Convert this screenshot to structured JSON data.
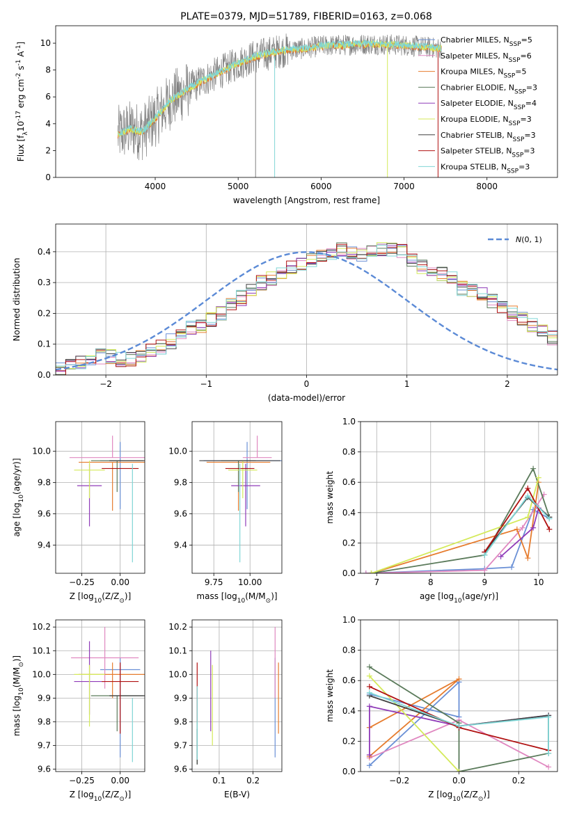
{
  "figure": {
    "title": "PLATE=0379, MJD=51789, FIBERID=0163, z=0.068"
  },
  "colors": {
    "gray": "#808080",
    "cyan": "#80d6d6",
    "orange": "#e67c2e",
    "yellow_green": "#d4ea5a",
    "purple": "#8f3ab8",
    "dark_green": "#5a7a5a",
    "red": "#b01010",
    "blue": "#6a90d6",
    "pink": "#e088c0",
    "dark_gray": "#404040"
  },
  "chart_data": [
    {
      "id": "spectrum",
      "type": "line",
      "title": "PLATE=0379, MJD=51789, FIBERID=0163, z=0.068",
      "xlabel": "wavelength [Angstrom, rest frame]",
      "ylabel": "Flux [f$_\\lambda$10$^{-17}$ erg cm$^{-2}$ s$^{-1}$ A$^{-1}$]",
      "xlim": [
        2800,
        8850
      ],
      "ylim": [
        0,
        11.3
      ],
      "xticks": [
        "4000",
        "5000",
        "6000",
        "7000",
        "8000"
      ],
      "yticks": [
        "0",
        "2",
        "4",
        "6",
        "8",
        "10"
      ],
      "data_range": [
        3550,
        7450
      ],
      "model_trend": {
        "x": [
          3550,
          3700,
          3850,
          4000,
          4200,
          4400,
          4600,
          4800,
          5000,
          5200,
          5400,
          5600,
          5800,
          6000,
          6200,
          6400,
          6600,
          6800,
          7000,
          7200,
          7450
        ],
        "y": [
          3.2,
          3.6,
          3.4,
          4.4,
          5.8,
          6.6,
          7.3,
          7.9,
          8.5,
          9.0,
          9.3,
          9.5,
          9.6,
          9.8,
          9.85,
          9.9,
          9.95,
          9.9,
          9.85,
          9.75,
          9.6
        ]
      },
      "legend": [
        {
          "label": "Chabrier MILES, N$_{SSP}$=5",
          "color": "#6a90d6"
        },
        {
          "label": "Salpeter MILES, N$_{SSP}$=6",
          "color": "#e088c0"
        },
        {
          "label": "Kroupa MILES, N$_{SSP}$=5",
          "color": "#e67c2e"
        },
        {
          "label": "Chabrier ELODIE, N$_{SSP}$=3",
          "color": "#5a7a5a"
        },
        {
          "label": "Salpeter ELODIE, N$_{SSP}$=4",
          "color": "#8f3ab8"
        },
        {
          "label": "Kroupa ELODIE, N$_{SSP}$=3",
          "color": "#d4ea5a"
        },
        {
          "label": "Chabrier STELIB, N$_{SSP}$=3",
          "color": "#404040"
        },
        {
          "label": "Salpeter STELIB, N$_{SSP}$=3",
          "color": "#b01010"
        },
        {
          "label": "Kroupa STELIB, N$_{SSP}$=3",
          "color": "#80d6d6"
        }
      ]
    },
    {
      "id": "residuals",
      "type": "line",
      "xlabel": "(data-model)/error",
      "ylabel": "Normed distribution",
      "xlim": [
        -2.5,
        2.5
      ],
      "ylim": [
        0,
        0.49
      ],
      "xticks": [
        "−2",
        "−1",
        "0",
        "1",
        "2"
      ],
      "yticks": [
        "0.0",
        "0.1",
        "0.2",
        "0.3",
        "0.4"
      ],
      "legend": [
        {
          "label": "$\\mathcal{N}(0, 1)$",
          "color": "#5b8ad6"
        }
      ],
      "bin_width": 0.1,
      "hist_mean": [
        0.02,
        0.03,
        0.04,
        0.05,
        0.06,
        0.06,
        0.05,
        0.05,
        0.06,
        0.08,
        0.09,
        0.11,
        0.13,
        0.15,
        0.16,
        0.18,
        0.2,
        0.23,
        0.25,
        0.28,
        0.3,
        0.31,
        0.33,
        0.35,
        0.36,
        0.37,
        0.38,
        0.4,
        0.41,
        0.4,
        0.39,
        0.4,
        0.41,
        0.41,
        0.4,
        0.37,
        0.35,
        0.34,
        0.33,
        0.31,
        0.28,
        0.27,
        0.26,
        0.24,
        0.22,
        0.2,
        0.18,
        0.16,
        0.14,
        0.12,
        0.12,
        0.1,
        0.09,
        0.07,
        0.06,
        0.05,
        0.04,
        0.04,
        0.03,
        0.03
      ]
    },
    {
      "id": "age-vs-Z",
      "type": "scatter",
      "xlabel": "Z [log$_{10}$(Z/Z$_\\odot$)]",
      "ylabel": "age  [log$_{10}$(age/yr)]",
      "xlim": [
        -0.42,
        0.16
      ],
      "ylim": [
        9.22,
        10.19
      ],
      "xticks": [
        "−0.25",
        "0.00"
      ],
      "yticks": [
        "9.4",
        "9.6",
        "9.8",
        "10.0"
      ],
      "points": [
        {
          "x": 0.0,
          "y": 9.94,
          "xerr": 0.13,
          "yerr": [
            0.31,
            0.12
          ],
          "color": "#6a90d6"
        },
        {
          "x": -0.05,
          "y": 9.96,
          "xerr": 0.28,
          "yerr": [
            0.0,
            0.14
          ],
          "color": "#e088c0"
        },
        {
          "x": -0.05,
          "y": 9.93,
          "xerr": 0.22,
          "yerr": [
            0.31,
            0.0
          ],
          "color": "#e67c2e"
        },
        {
          "x": -0.02,
          "y": 9.94,
          "xerr": 0.17,
          "yerr": [
            0.2,
            0.0
          ],
          "color": "#5a7a5a"
        },
        {
          "x": -0.2,
          "y": 9.78,
          "xerr": 0.08,
          "yerr": [
            0.26,
            0.14
          ],
          "color": "#8f3ab8"
        },
        {
          "x": -0.2,
          "y": 9.88,
          "xerr": 0.1,
          "yerr": [
            0.18,
            0.06
          ],
          "color": "#d4ea5a"
        },
        {
          "x": 0.05,
          "y": 9.94,
          "xerr": 0.12,
          "yerr": [
            0.0,
            0.0
          ],
          "color": "#404040"
        },
        {
          "x": 0.0,
          "y": 9.89,
          "xerr": 0.12,
          "yerr": [
            0.0,
            0.0
          ],
          "color": "#b01010"
        },
        {
          "x": 0.08,
          "y": 9.92,
          "xerr": 0.0,
          "yerr": [
            0.63,
            0.0
          ],
          "color": "#80d6d6"
        }
      ]
    },
    {
      "id": "age-vs-mass",
      "type": "scatter",
      "xlabel": "mass [log$_{10}$(M/M$_\\odot$)]",
      "ylabel": "",
      "xlim": [
        9.6,
        10.22
      ],
      "ylim": [
        9.22,
        10.19
      ],
      "xticks": [
        "9.75",
        "10.00"
      ],
      "yticks": [
        "9.4",
        "9.6",
        "9.8",
        "10.0"
      ],
      "points": [
        {
          "x": 9.98,
          "y": 9.94,
          "xerr": 0.3,
          "yerr": [
            0.31,
            0.12
          ],
          "color": "#6a90d6"
        },
        {
          "x": 10.05,
          "y": 9.96,
          "xerr": 0.1,
          "yerr": [
            0.0,
            0.14
          ],
          "color": "#e088c0"
        },
        {
          "x": 9.92,
          "y": 9.93,
          "xerr": 0.22,
          "yerr": [
            0.31,
            0.0
          ],
          "color": "#e67c2e"
        },
        {
          "x": 9.92,
          "y": 9.94,
          "xerr": 0.12,
          "yerr": [
            0.2,
            0.0
          ],
          "color": "#5a7a5a"
        },
        {
          "x": 9.97,
          "y": 9.78,
          "xerr": 0.1,
          "yerr": [
            0.26,
            0.14
          ],
          "color": "#8f3ab8"
        },
        {
          "x": 9.95,
          "y": 9.88,
          "xerr": 0.1,
          "yerr": [
            0.18,
            0.06
          ],
          "color": "#d4ea5a"
        },
        {
          "x": 9.93,
          "y": 9.94,
          "xerr": 0.28,
          "yerr": [
            0.0,
            0.0
          ],
          "color": "#404040"
        },
        {
          "x": 9.93,
          "y": 9.89,
          "xerr": 0.1,
          "yerr": [
            0.0,
            0.0
          ],
          "color": "#b01010"
        },
        {
          "x": 9.93,
          "y": 9.92,
          "xerr": 0.0,
          "yerr": [
            0.63,
            0.0
          ],
          "color": "#80d6d6"
        }
      ]
    },
    {
      "id": "mass-weight-vs-age",
      "type": "line",
      "xlabel": "age  [log$_{10}$(age/yr)]",
      "ylabel": "mass weight",
      "xlim": [
        6.7,
        10.35
      ],
      "ylim": [
        0,
        1.0
      ],
      "xticks": [
        "7",
        "8",
        "9",
        "10"
      ],
      "yticks": [
        "0.0",
        "0.2",
        "0.4",
        "0.6",
        "0.8",
        "1.0"
      ],
      "series": [
        {
          "color": "#6a90d6",
          "x": [
            6.8,
            9.0,
            9.5,
            9.9,
            10.2
          ],
          "y": [
            0.0,
            0.03,
            0.04,
            0.42,
            0.36
          ]
        },
        {
          "color": "#e088c0",
          "x": [
            6.8,
            9.0,
            9.7,
            10.1
          ],
          "y": [
            0.0,
            0.02,
            0.3,
            0.52
          ]
        },
        {
          "color": "#e67c2e",
          "x": [
            6.9,
            9.6,
            9.8,
            10.0
          ],
          "y": [
            0.0,
            0.29,
            0.1,
            0.6
          ]
        },
        {
          "color": "#5a7a5a",
          "x": [
            6.9,
            9.0,
            9.9,
            10.2
          ],
          "y": [
            0.0,
            0.12,
            0.69,
            0.37
          ]
        },
        {
          "color": "#8f3ab8",
          "x": [
            9.3,
            9.9,
            10.0
          ],
          "y": [
            0.11,
            0.3,
            0.43
          ]
        },
        {
          "color": "#d4ea5a",
          "x": [
            6.9,
            9.8,
            10.0
          ],
          "y": [
            0.0,
            0.37,
            0.63
          ]
        },
        {
          "color": "#404040",
          "x": [
            9.0,
            9.8,
            10.2
          ],
          "y": [
            0.14,
            0.5,
            0.37
          ]
        },
        {
          "color": "#b01010",
          "x": [
            9.0,
            9.8,
            10.2
          ],
          "y": [
            0.14,
            0.56,
            0.29
          ]
        },
        {
          "color": "#80d6d6",
          "x": [
            9.0,
            9.8,
            10.2
          ],
          "y": [
            0.12,
            0.51,
            0.36
          ]
        }
      ]
    },
    {
      "id": "mass-vs-Z",
      "type": "scatter",
      "xlabel": "Z [log$_{10}$(Z/Z$_\\odot$)]",
      "ylabel": "mass [log$_{10}$(M/M$_\\odot$)]",
      "xlim": [
        -0.42,
        0.16
      ],
      "ylim": [
        9.59,
        10.23
      ],
      "xticks": [
        "−0.25",
        "0.00"
      ],
      "yticks": [
        "9.6",
        "9.7",
        "9.8",
        "9.9",
        "10.0",
        "10.1",
        "10.2"
      ],
      "points": [
        {
          "x": 0.0,
          "y": 10.02,
          "xerr": 0.13,
          "yerr": [
            0.37,
            0.05
          ],
          "color": "#6a90d6"
        },
        {
          "x": -0.1,
          "y": 10.07,
          "xerr": 0.22,
          "yerr": [
            0.13,
            0.13
          ],
          "color": "#e088c0"
        },
        {
          "x": -0.05,
          "y": 10.0,
          "xerr": 0.22,
          "yerr": [
            0.1,
            0.05
          ],
          "color": "#e67c2e"
        },
        {
          "x": -0.02,
          "y": 9.91,
          "xerr": 0.17,
          "yerr": [
            0.15,
            0.0
          ],
          "color": "#5a7a5a"
        },
        {
          "x": -0.2,
          "y": 9.97,
          "xerr": 0.1,
          "yerr": [
            0.14,
            0.17
          ],
          "color": "#8f3ab8"
        },
        {
          "x": -0.2,
          "y": 10.0,
          "xerr": 0.1,
          "yerr": [
            0.22,
            0.04
          ],
          "color": "#d4ea5a"
        },
        {
          "x": 0.05,
          "y": 9.91,
          "xerr": 0.12,
          "yerr": [
            0.0,
            0.0
          ],
          "color": "#404040"
        },
        {
          "x": 0.0,
          "y": 9.97,
          "xerr": 0.12,
          "yerr": [
            0.22,
            0.08
          ],
          "color": "#b01010"
        },
        {
          "x": 0.08,
          "y": 9.9,
          "xerr": 0.0,
          "yerr": [
            0.27,
            0.0
          ],
          "color": "#80d6d6"
        }
      ]
    },
    {
      "id": "mass-vs-ebv",
      "type": "scatter",
      "xlabel": "E(B-V)",
      "ylabel": "",
      "xlim": [
        0.02,
        0.285
      ],
      "ylim": [
        9.59,
        10.23
      ],
      "xticks": [
        "0.1",
        "0.2"
      ],
      "yticks": [
        "9.6",
        "9.7",
        "9.8",
        "9.9",
        "10.0",
        "10.1",
        "10.2"
      ],
      "points": [
        {
          "x": 0.265,
          "y": 9.86,
          "xerr": 0.0,
          "yerr": [
            0.21,
            0.21
          ],
          "color": "#6a90d6"
        },
        {
          "x": 0.265,
          "y": 10.0,
          "xerr": 0.0,
          "yerr": [
            0.1,
            0.2
          ],
          "color": "#e088c0"
        },
        {
          "x": 0.275,
          "y": 9.9,
          "xerr": 0.0,
          "yerr": [
            0.15,
            0.15
          ],
          "color": "#e67c2e"
        },
        {
          "x": 0.035,
          "y": 9.8,
          "xerr": 0.0,
          "yerr": [
            0.18,
            0.0
          ],
          "color": "#5a7a5a"
        },
        {
          "x": 0.075,
          "y": 9.98,
          "xerr": 0.0,
          "yerr": [
            0.22,
            0.12
          ],
          "color": "#8f3ab8"
        },
        {
          "x": 0.08,
          "y": 9.88,
          "xerr": 0.0,
          "yerr": [
            0.18,
            0.16
          ],
          "color": "#d4ea5a"
        },
        {
          "x": 0.035,
          "y": 9.77,
          "xerr": 0.0,
          "yerr": [
            0.15,
            0.0
          ],
          "color": "#404040"
        },
        {
          "x": 0.035,
          "y": 9.9,
          "xerr": 0.0,
          "yerr": [
            0.1,
            0.15
          ],
          "color": "#b01010"
        },
        {
          "x": 0.035,
          "y": 9.78,
          "xerr": 0.0,
          "yerr": [
            0.14,
            0.17
          ],
          "color": "#80d6d6"
        }
      ]
    },
    {
      "id": "mass-weight-vs-Z",
      "type": "line",
      "xlabel": "Z [log$_{10}$(Z/Z$_\\odot$)]",
      "ylabel": "mass weight",
      "xlim": [
        -0.33,
        0.33
      ],
      "ylim": [
        0,
        1.0
      ],
      "xticks": [
        "−0.2",
        "0.0",
        "0.2"
      ],
      "yticks": [
        "0.0",
        "0.2",
        "0.4",
        "0.6",
        "0.8",
        "1.0"
      ],
      "series": [
        {
          "color": "#6a90d6",
          "x": [
            -0.3,
            0.0,
            0.0,
            -0.3
          ],
          "y": [
            0.04,
            0.59,
            0.36,
            0.51
          ]
        },
        {
          "color": "#e088c0",
          "x": [
            -0.3,
            0.0,
            0.3
          ],
          "y": [
            0.09,
            0.34,
            0.03
          ]
        },
        {
          "color": "#e67c2e",
          "x": [
            -0.3,
            0.0,
            -0.3
          ],
          "y": [
            0.1,
            0.61,
            0.29
          ]
        },
        {
          "color": "#5a7a5a",
          "x": [
            -0.3,
            0.0,
            0.0,
            0.3
          ],
          "y": [
            0.69,
            0.32,
            0.0,
            0.12
          ]
        },
        {
          "color": "#8f3ab8",
          "x": [
            -0.3,
            -0.3,
            0.0,
            0.3
          ],
          "y": [
            0.11,
            0.43,
            0.3,
            0.37
          ]
        },
        {
          "color": "#d4ea5a",
          "x": [
            -0.3,
            0.0
          ],
          "y": [
            0.63,
            0.0
          ]
        },
        {
          "color": "#404040",
          "x": [
            -0.3,
            0.0,
            0.3,
            0.3
          ],
          "y": [
            0.5,
            0.3,
            0.37,
            0.14
          ]
        },
        {
          "color": "#b01010",
          "x": [
            -0.3,
            0.0,
            0.3
          ],
          "y": [
            0.56,
            0.29,
            0.14
          ]
        },
        {
          "color": "#80d6d6",
          "x": [
            -0.3,
            0.0,
            0.3,
            0.3
          ],
          "y": [
            0.52,
            0.3,
            0.36,
            0.12
          ]
        }
      ]
    }
  ]
}
